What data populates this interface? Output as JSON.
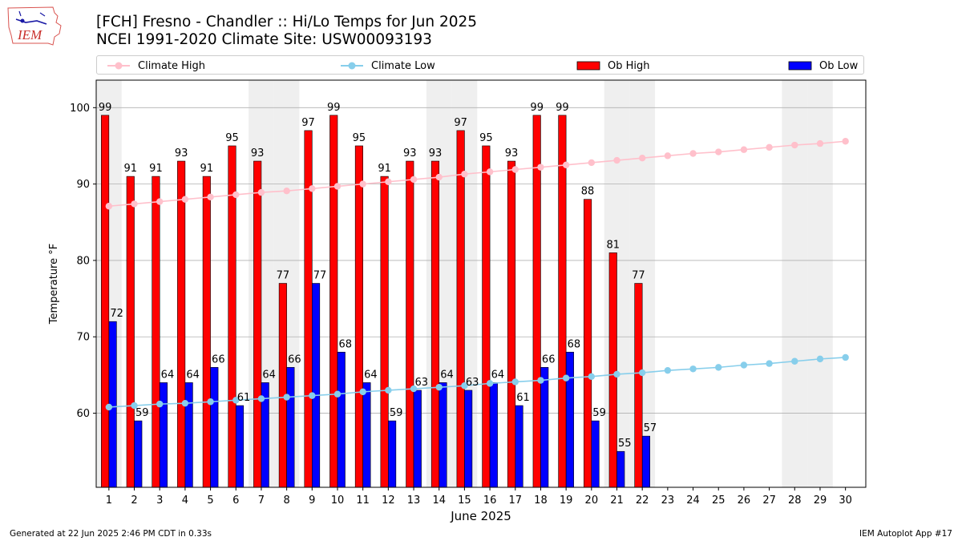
{
  "header": {
    "logo_text": "IEM",
    "title_line1": "[FCH] Fresno - Chandler :: Hi/Lo Temps for Jun 2025",
    "title_line2": "NCEI 1991-2020 Climate Site: USW00093193"
  },
  "footer": {
    "generated": "Generated at 22 Jun 2025 2:46 PM CDT in 0.33s",
    "app": "IEM Autoplot App #17"
  },
  "colors": {
    "ob_high": "#ff0000",
    "ob_low": "#0000ff",
    "climate_high": "#ffc0cb",
    "climate_low": "#87ceeb",
    "weekend_band": "#efefef",
    "grid": "#b0b0b0"
  },
  "chart_data": {
    "type": "bar",
    "xlabel": "June 2025",
    "ylabel": "Temperature °F",
    "ylim": [
      50.3,
      103.6
    ],
    "yticks": [
      60,
      70,
      80,
      90,
      100
    ],
    "grid": "horizontal",
    "legend_placement": "top",
    "categories": [
      1,
      2,
      3,
      4,
      5,
      6,
      7,
      8,
      9,
      10,
      11,
      12,
      13,
      14,
      15,
      16,
      17,
      18,
      19,
      20,
      21,
      22,
      23,
      24,
      25,
      26,
      27,
      28,
      29,
      30
    ],
    "weekend_days": [
      1,
      7,
      8,
      14,
      15,
      21,
      22,
      28,
      29
    ],
    "series": [
      {
        "name": "Ob High",
        "kind": "bar",
        "values": [
          99,
          91,
          91,
          93,
          91,
          95,
          93,
          77,
          97,
          99,
          95,
          91,
          93,
          93,
          97,
          95,
          93,
          99,
          99,
          88,
          81,
          77,
          null,
          null,
          null,
          null,
          null,
          null,
          null,
          null
        ]
      },
      {
        "name": "Ob Low",
        "kind": "bar",
        "values": [
          72,
          59,
          64,
          64,
          66,
          61,
          64,
          66,
          77,
          68,
          64,
          59,
          63,
          64,
          63,
          64,
          61,
          66,
          68,
          59,
          55,
          57,
          null,
          null,
          null,
          null,
          null,
          null,
          null,
          null
        ]
      },
      {
        "name": "Climate High",
        "kind": "line",
        "values": [
          87.1,
          87.4,
          87.7,
          88.0,
          88.3,
          88.6,
          88.9,
          89.1,
          89.4,
          89.7,
          90.0,
          90.3,
          90.6,
          90.9,
          91.3,
          91.6,
          91.9,
          92.2,
          92.5,
          92.8,
          93.1,
          93.4,
          93.7,
          94.0,
          94.2,
          94.5,
          94.8,
          95.1,
          95.3,
          95.6
        ]
      },
      {
        "name": "Climate Low",
        "kind": "line",
        "values": [
          60.8,
          61.0,
          61.2,
          61.3,
          61.5,
          61.7,
          61.9,
          62.1,
          62.3,
          62.5,
          62.8,
          63.0,
          63.2,
          63.4,
          63.6,
          63.9,
          64.1,
          64.3,
          64.6,
          64.8,
          65.1,
          65.3,
          65.6,
          65.8,
          66.0,
          66.3,
          66.5,
          66.8,
          67.1,
          67.3
        ]
      }
    ]
  }
}
